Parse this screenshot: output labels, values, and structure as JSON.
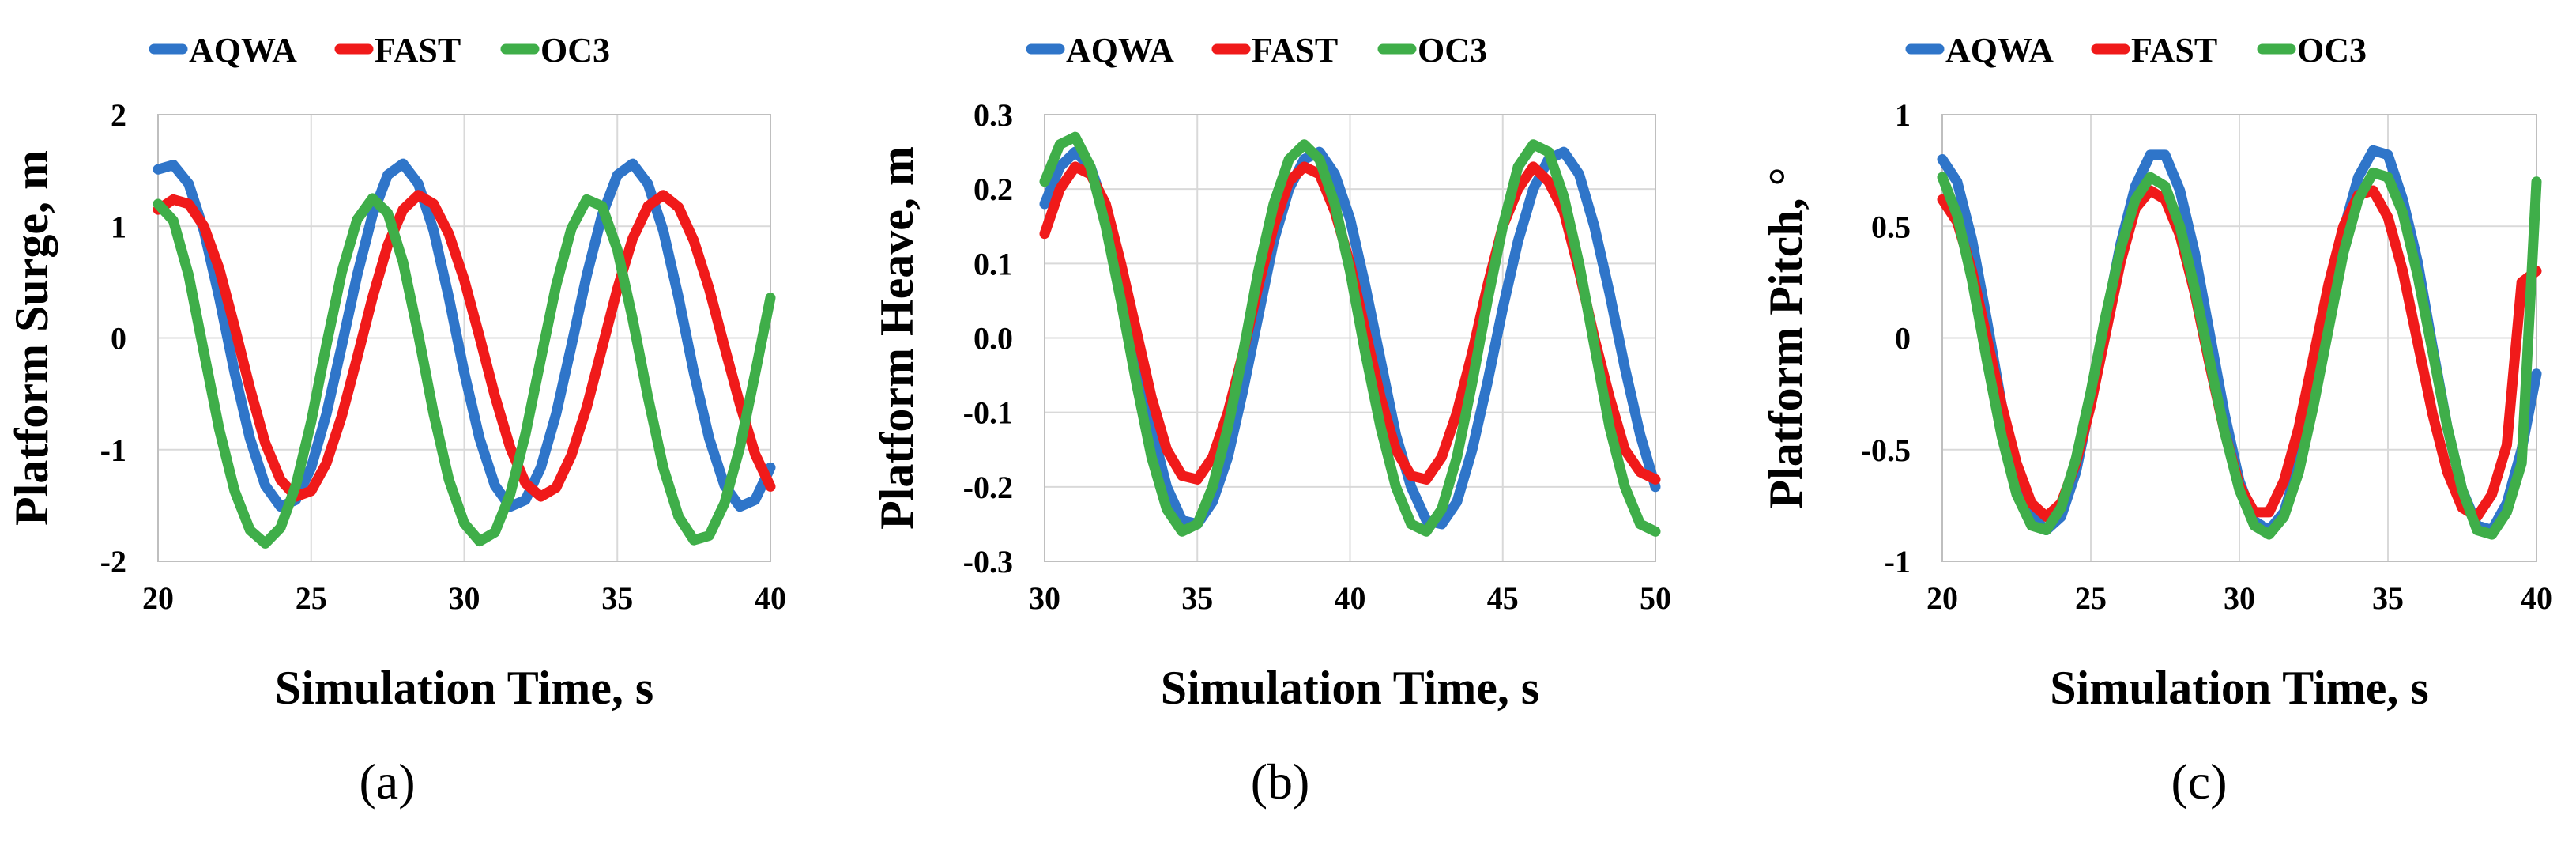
{
  "figure": {
    "panels": [
      "a",
      "b",
      "c"
    ]
  },
  "chart_data": [
    {
      "type": "line",
      "panel_label": "(a)",
      "legend": [
        "AQWA",
        "FAST",
        "OC3"
      ],
      "xlabel": "Simulation Time, s",
      "ylabel": "Platform Surge, m",
      "xlim": [
        20,
        40
      ],
      "ylim": [
        -2,
        2
      ],
      "xticks": [
        "20",
        "25",
        "30",
        "35",
        "40"
      ],
      "yticks": [
        "2",
        "1",
        "0",
        "-1",
        "-2"
      ],
      "x": [
        20,
        20.5,
        21,
        21.5,
        22,
        22.5,
        23,
        23.5,
        24,
        24.5,
        25,
        25.5,
        26,
        26.5,
        27,
        27.5,
        28,
        28.5,
        29,
        29.5,
        30,
        30.5,
        31,
        31.5,
        32,
        32.5,
        33,
        33.5,
        34,
        34.5,
        35,
        35.5,
        36,
        36.5,
        37,
        37.5,
        38,
        38.5,
        39,
        39.5,
        40
      ],
      "series": [
        {
          "name": "AQWA",
          "color": "#2f75c9",
          "values": [
            1.51,
            1.55,
            1.38,
            0.96,
            0.36,
            -0.31,
            -0.9,
            -1.32,
            -1.51,
            -1.45,
            -1.16,
            -0.68,
            -0.07,
            0.56,
            1.1,
            1.46,
            1.56,
            1.38,
            0.96,
            0.36,
            -0.31,
            -0.9,
            -1.32,
            -1.51,
            -1.45,
            -1.16,
            -0.68,
            -0.07,
            0.56,
            1.1,
            1.46,
            1.56,
            1.38,
            0.96,
            0.36,
            -0.31,
            -0.9,
            -1.32,
            -1.51,
            -1.45,
            -1.16
          ]
        },
        {
          "name": "FAST",
          "color": "#f01a1a",
          "values": [
            1.15,
            1.24,
            1.2,
            1.0,
            0.62,
            0.1,
            -0.45,
            -0.94,
            -1.27,
            -1.42,
            -1.37,
            -1.12,
            -0.7,
            -0.18,
            0.36,
            0.83,
            1.15,
            1.28,
            1.2,
            0.93,
            0.52,
            0.01,
            -0.52,
            -0.98,
            -1.3,
            -1.42,
            -1.34,
            -1.05,
            -0.62,
            -0.09,
            0.44,
            0.89,
            1.18,
            1.28,
            1.17,
            0.87,
            0.44,
            -0.08,
            -0.59,
            -1.04,
            -1.33
          ]
        },
        {
          "name": "OC3",
          "color": "#3fae49",
          "values": [
            1.2,
            1.05,
            0.56,
            -0.13,
            -0.82,
            -1.37,
            -1.72,
            -1.84,
            -1.7,
            -1.32,
            -0.75,
            -0.06,
            0.59,
            1.06,
            1.25,
            1.12,
            0.68,
            0.03,
            -0.68,
            -1.27,
            -1.66,
            -1.82,
            -1.74,
            -1.4,
            -0.86,
            -0.19,
            0.47,
            0.98,
            1.24,
            1.18,
            0.79,
            0.17,
            -0.53,
            -1.16,
            -1.6,
            -1.81,
            -1.77,
            -1.48,
            -0.98,
            -0.32,
            0.36
          ]
        }
      ]
    },
    {
      "type": "line",
      "panel_label": "(b)",
      "legend": [
        "AQWA",
        "FAST",
        "OC3"
      ],
      "xlabel": "Simulation Time, s",
      "ylabel": "Platform Heave, m",
      "xlim": [
        30,
        50
      ],
      "ylim": [
        -0.3,
        0.3
      ],
      "xticks": [
        "30",
        "35",
        "40",
        "45",
        "50"
      ],
      "yticks": [
        "0.3",
        "0.2",
        "0.1",
        "0.0",
        "-0.1",
        "-0.2",
        "-0.3"
      ],
      "x": [
        30,
        30.5,
        31,
        31.5,
        32,
        32.5,
        33,
        33.5,
        34,
        34.5,
        35,
        35.5,
        36,
        36.5,
        37,
        37.5,
        38,
        38.5,
        39,
        39.5,
        40,
        40.5,
        41,
        41.5,
        42,
        42.5,
        43,
        43.5,
        44,
        44.5,
        45,
        45.5,
        46,
        46.5,
        47,
        47.5,
        48,
        48.5,
        49,
        49.5,
        50
      ],
      "series": [
        {
          "name": "AQWA",
          "color": "#2f75c9",
          "values": [
            0.18,
            0.23,
            0.25,
            0.23,
            0.17,
            0.08,
            -0.02,
            -0.12,
            -0.2,
            -0.245,
            -0.25,
            -0.22,
            -0.16,
            -0.07,
            0.03,
            0.13,
            0.2,
            0.24,
            0.25,
            0.22,
            0.16,
            0.07,
            -0.03,
            -0.13,
            -0.2,
            -0.245,
            -0.25,
            -0.22,
            -0.15,
            -0.06,
            0.04,
            0.13,
            0.2,
            0.24,
            0.25,
            0.22,
            0.15,
            0.06,
            -0.04,
            -0.13,
            -0.2
          ]
        },
        {
          "name": "FAST",
          "color": "#f01a1a",
          "values": [
            0.14,
            0.2,
            0.23,
            0.22,
            0.18,
            0.1,
            0.01,
            -0.08,
            -0.15,
            -0.185,
            -0.19,
            -0.16,
            -0.1,
            -0.02,
            0.07,
            0.15,
            0.21,
            0.23,
            0.22,
            0.17,
            0.1,
            0.01,
            -0.08,
            -0.15,
            -0.185,
            -0.19,
            -0.16,
            -0.1,
            -0.02,
            0.07,
            0.15,
            0.2,
            0.23,
            0.21,
            0.17,
            0.09,
            0.0,
            -0.08,
            -0.15,
            -0.18,
            -0.19
          ]
        },
        {
          "name": "OC3",
          "color": "#3fae49",
          "values": [
            0.21,
            0.26,
            0.27,
            0.23,
            0.15,
            0.05,
            -0.06,
            -0.16,
            -0.23,
            -0.26,
            -0.25,
            -0.2,
            -0.12,
            -0.02,
            0.09,
            0.18,
            0.24,
            0.26,
            0.24,
            0.18,
            0.09,
            -0.02,
            -0.12,
            -0.2,
            -0.25,
            -0.26,
            -0.23,
            -0.16,
            -0.06,
            0.05,
            0.15,
            0.23,
            0.26,
            0.25,
            0.19,
            0.1,
            -0.01,
            -0.12,
            -0.2,
            -0.25,
            -0.26
          ]
        }
      ]
    },
    {
      "type": "line",
      "panel_label": "(c)",
      "legend": [
        "AQWA",
        "FAST",
        "OC3"
      ],
      "xlabel": "Simulation Time, s",
      "ylabel": "Platform Pitch, °",
      "xlim": [
        20,
        40
      ],
      "ylim": [
        -1,
        1
      ],
      "xticks": [
        "20",
        "25",
        "30",
        "35",
        "40"
      ],
      "yticks": [
        "1",
        "0.5",
        "0",
        "-0.5",
        "-1"
      ],
      "x": [
        20,
        20.5,
        21,
        21.5,
        22,
        22.5,
        23,
        23.5,
        24,
        24.5,
        25,
        25.5,
        26,
        26.5,
        27,
        27.5,
        28,
        28.5,
        29,
        29.5,
        30,
        30.5,
        31,
        31.5,
        32,
        32.5,
        33,
        33.5,
        34,
        34.5,
        35,
        35.5,
        36,
        36.5,
        37,
        37.5,
        38,
        38.5,
        39,
        39.5,
        40
      ],
      "series": [
        {
          "name": "AQWA",
          "color": "#2f75c9",
          "values": [
            0.8,
            0.7,
            0.44,
            0.08,
            -0.3,
            -0.6,
            -0.8,
            -0.86,
            -0.8,
            -0.6,
            -0.28,
            0.08,
            0.42,
            0.68,
            0.82,
            0.82,
            0.66,
            0.38,
            0.02,
            -0.34,
            -0.64,
            -0.82,
            -0.86,
            -0.78,
            -0.56,
            -0.22,
            0.14,
            0.48,
            0.72,
            0.84,
            0.82,
            0.62,
            0.34,
            -0.04,
            -0.4,
            -0.68,
            -0.84,
            -0.86,
            -0.74,
            -0.5,
            -0.16
          ]
        },
        {
          "name": "FAST",
          "color": "#f01a1a",
          "values": [
            0.62,
            0.52,
            0.3,
            0.0,
            -0.3,
            -0.56,
            -0.74,
            -0.8,
            -0.74,
            -0.56,
            -0.3,
            0.02,
            0.34,
            0.58,
            0.66,
            0.62,
            0.46,
            0.2,
            -0.12,
            -0.42,
            -0.66,
            -0.78,
            -0.78,
            -0.64,
            -0.4,
            -0.08,
            0.24,
            0.5,
            0.64,
            0.66,
            0.54,
            0.3,
            -0.02,
            -0.34,
            -0.6,
            -0.76,
            -0.8,
            -0.7,
            -0.48,
            0.25,
            0.3
          ]
        },
        {
          "name": "OC3",
          "color": "#3fae49",
          "values": [
            0.72,
            0.55,
            0.26,
            -0.1,
            -0.44,
            -0.7,
            -0.84,
            -0.86,
            -0.76,
            -0.54,
            -0.24,
            0.1,
            0.4,
            0.62,
            0.72,
            0.68,
            0.5,
            0.22,
            -0.1,
            -0.42,
            -0.68,
            -0.84,
            -0.88,
            -0.8,
            -0.6,
            -0.3,
            0.04,
            0.38,
            0.62,
            0.74,
            0.72,
            0.56,
            0.28,
            -0.06,
            -0.4,
            -0.68,
            -0.86,
            -0.88,
            -0.78,
            -0.56,
            0.7
          ]
        }
      ]
    }
  ]
}
